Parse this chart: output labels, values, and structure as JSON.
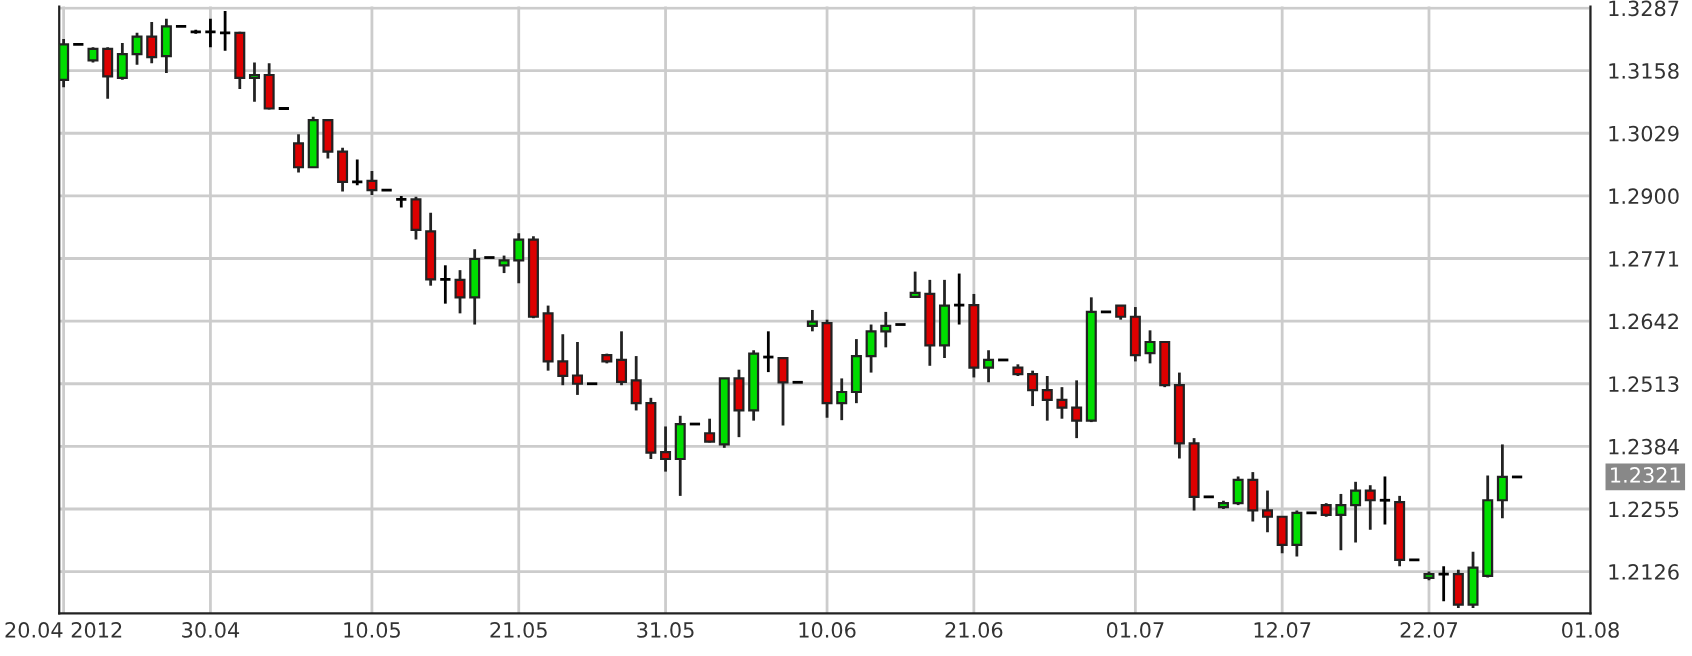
{
  "chart_data": {
    "type": "candlestick",
    "categories": [
      "20.04 2012",
      null,
      null,
      null,
      null,
      null,
      null,
      null,
      null,
      null,
      "30.04",
      null,
      null,
      null,
      null,
      null,
      null,
      null,
      null,
      null,
      null,
      "10.05",
      null,
      null,
      null,
      null,
      null,
      null,
      null,
      null,
      null,
      "21.05",
      null,
      null,
      null,
      null,
      null,
      null,
      null,
      null,
      null,
      "31.05",
      null,
      null,
      null,
      null,
      null,
      null,
      null,
      null,
      null,
      null,
      "10.06",
      null,
      null,
      null,
      null,
      null,
      null,
      null,
      null,
      null,
      "21.06",
      null,
      null,
      null,
      null,
      null,
      null,
      null,
      null,
      null,
      null,
      "01.07",
      null,
      null,
      null,
      null,
      null,
      null,
      null,
      null,
      null,
      "12.07",
      null,
      null,
      null,
      null,
      null,
      null,
      null,
      null,
      null,
      "22.07",
      null,
      null,
      null,
      null,
      null,
      null,
      null,
      null,
      null,
      null,
      "01.08"
    ],
    "ohlc": [
      [
        1.3139,
        1.3223,
        1.3124,
        1.3212
      ],
      [
        1.3212,
        1.3212,
        1.3212,
        1.3212
      ],
      [
        1.3179,
        1.3206,
        1.3175,
        1.3203
      ],
      [
        1.3203,
        1.3206,
        1.31,
        1.3146
      ],
      [
        1.3143,
        1.3215,
        1.3139,
        1.3192
      ],
      [
        1.3192,
        1.3236,
        1.317,
        1.3228
      ],
      [
        1.3228,
        1.3258,
        1.3173,
        1.3186
      ],
      [
        1.3188,
        1.3265,
        1.3153,
        1.3249
      ],
      [
        1.3249,
        1.3249,
        1.3249,
        1.3249
      ],
      [
        1.3238,
        1.3242,
        1.3234,
        1.3238
      ],
      [
        1.3238,
        1.3265,
        1.3206,
        1.3238
      ],
      [
        1.3236,
        1.3281,
        1.3199,
        1.3236
      ],
      [
        1.3236,
        1.3238,
        1.312,
        1.3143
      ],
      [
        1.3143,
        1.3175,
        1.3094,
        1.3149
      ],
      [
        1.3149,
        1.3173,
        1.3078,
        1.308
      ],
      [
        1.308,
        1.308,
        1.308,
        1.308
      ],
      [
        1.3008,
        1.3027,
        1.2948,
        1.2959
      ],
      [
        1.2959,
        1.3063,
        1.2959,
        1.3056
      ],
      [
        1.3056,
        1.3056,
        1.2977,
        1.2991
      ],
      [
        1.2991,
        1.2999,
        1.2909,
        1.2929
      ],
      [
        1.2929,
        1.2975,
        1.2922,
        1.2929
      ],
      [
        1.2931,
        1.2951,
        1.2902,
        1.2912
      ],
      [
        1.2912,
        1.2912,
        1.2912,
        1.2912
      ],
      [
        1.2893,
        1.29,
        1.2876,
        1.2893
      ],
      [
        1.2893,
        1.2898,
        1.281,
        1.283
      ],
      [
        1.2827,
        1.2865,
        1.2715,
        1.2728
      ],
      [
        1.2728,
        1.2757,
        1.2678,
        1.2728
      ],
      [
        1.2727,
        1.2747,
        1.2658,
        1.2691
      ],
      [
        1.2691,
        1.279,
        1.2635,
        1.277
      ],
      [
        1.2773,
        1.2773,
        1.2773,
        1.2773
      ],
      [
        1.2757,
        1.2777,
        1.2741,
        1.2767
      ],
      [
        1.2767,
        1.2823,
        1.272,
        1.281
      ],
      [
        1.281,
        1.2817,
        1.2648,
        1.2651
      ],
      [
        1.2658,
        1.2674,
        1.254,
        1.2559
      ],
      [
        1.2559,
        1.2615,
        1.251,
        1.2529
      ],
      [
        1.253,
        1.2599,
        1.249,
        1.2513
      ],
      [
        1.2513,
        1.2513,
        1.2513,
        1.2513
      ],
      [
        1.2572,
        1.2575,
        1.2555,
        1.2559
      ],
      [
        1.2562,
        1.2621,
        1.251,
        1.2517
      ],
      [
        1.252,
        1.257,
        1.2458,
        1.2473
      ],
      [
        1.2473,
        1.2484,
        1.2358,
        1.2371
      ],
      [
        1.2372,
        1.2425,
        1.2332,
        1.2358
      ],
      [
        1.2358,
        1.2447,
        1.2282,
        1.243
      ],
      [
        1.243,
        1.243,
        1.243,
        1.243
      ],
      [
        1.2411,
        1.2441,
        1.2392,
        1.2394
      ],
      [
        1.2388,
        1.2524,
        1.2381,
        1.2524
      ],
      [
        1.2524,
        1.2542,
        1.2403,
        1.2458
      ],
      [
        1.2458,
        1.2582,
        1.2437,
        1.2575
      ],
      [
        1.2568,
        1.2621,
        1.2537,
        1.2568
      ],
      [
        1.2566,
        1.2566,
        1.2427,
        1.2516
      ],
      [
        1.2516,
        1.2516,
        1.2516,
        1.2516
      ],
      [
        1.2632,
        1.2665,
        1.2621,
        1.2641
      ],
      [
        1.2638,
        1.2645,
        1.2443,
        1.2473
      ],
      [
        1.2473,
        1.2524,
        1.2438,
        1.2496
      ],
      [
        1.2496,
        1.2605,
        1.2473,
        1.257
      ],
      [
        1.257,
        1.2635,
        1.2536,
        1.2621
      ],
      [
        1.2621,
        1.2661,
        1.2588,
        1.2632
      ],
      [
        1.2635,
        1.2635,
        1.2635,
        1.2635
      ],
      [
        1.2692,
        1.2744,
        1.2691,
        1.27
      ],
      [
        1.2698,
        1.2727,
        1.255,
        1.2592
      ],
      [
        1.2592,
        1.2727,
        1.2566,
        1.2674
      ],
      [
        1.2675,
        1.274,
        1.2635,
        1.2675
      ],
      [
        1.2675,
        1.2698,
        1.2526,
        1.2546
      ],
      [
        1.2546,
        1.2582,
        1.2516,
        1.2562
      ],
      [
        1.2562,
        1.2562,
        1.2562,
        1.2562
      ],
      [
        1.2546,
        1.2553,
        1.2529,
        1.2533
      ],
      [
        1.2533,
        1.254,
        1.2467,
        1.25
      ],
      [
        1.25,
        1.2529,
        1.2437,
        1.248
      ],
      [
        1.248,
        1.2506,
        1.2441,
        1.2464
      ],
      [
        1.2464,
        1.252,
        1.2401,
        1.2437
      ],
      [
        1.2437,
        1.2691,
        1.2434,
        1.2661
      ],
      [
        1.2661,
        1.2661,
        1.2661,
        1.2661
      ],
      [
        1.2674,
        1.2674,
        1.2645,
        1.2651
      ],
      [
        1.2651,
        1.2671,
        1.2559,
        1.2572
      ],
      [
        1.2576,
        1.2623,
        1.2555,
        1.2599
      ],
      [
        1.2599,
        1.2599,
        1.2506,
        1.251
      ],
      [
        1.251,
        1.2536,
        1.2359,
        1.239
      ],
      [
        1.239,
        1.2401,
        1.2252,
        1.228
      ],
      [
        1.228,
        1.228,
        1.228,
        1.228
      ],
      [
        1.2259,
        1.2272,
        1.2255,
        1.2267
      ],
      [
        1.2267,
        1.2322,
        1.2263,
        1.2315
      ],
      [
        1.2315,
        1.2331,
        1.2229,
        1.2252
      ],
      [
        1.2252,
        1.2293,
        1.2207,
        1.2239
      ],
      [
        1.2239,
        1.2239,
        1.2164,
        1.2181
      ],
      [
        1.2181,
        1.2252,
        1.2157,
        1.2247
      ],
      [
        1.2247,
        1.2247,
        1.2247,
        1.2247
      ],
      [
        1.2263,
        1.2267,
        1.2239,
        1.2243
      ],
      [
        1.2243,
        1.2286,
        1.217,
        1.2263
      ],
      [
        1.2263,
        1.2311,
        1.2186,
        1.2293
      ],
      [
        1.2293,
        1.2304,
        1.2212,
        1.2273
      ],
      [
        1.2273,
        1.2322,
        1.2223,
        1.2273
      ],
      [
        1.2269,
        1.2282,
        1.2137,
        1.215
      ],
      [
        1.215,
        1.215,
        1.215,
        1.215
      ],
      [
        1.2113,
        1.2126,
        1.2108,
        1.2121
      ],
      [
        1.2121,
        1.2137,
        1.2065,
        1.2121
      ],
      [
        1.2121,
        1.213,
        1.2051,
        1.2058
      ],
      [
        1.2058,
        1.2167,
        1.2051,
        1.2134
      ],
      [
        1.2117,
        1.2324,
        1.2114,
        1.2273
      ],
      [
        1.2273,
        1.2388,
        1.2236,
        1.2321
      ],
      [
        1.2321,
        1.2321,
        1.2321,
        1.2321
      ],
      null,
      null,
      null,
      null,
      null
    ],
    "colors": [
      "#00dd00",
      "#000000",
      "#00dd00",
      "#dd0000",
      "#00dd00",
      "#00dd00",
      "#dd0000",
      "#00dd00",
      "#000000",
      "#000000",
      "#000000",
      "#000000",
      "#dd0000",
      "#00dd00",
      "#dd0000",
      "#000000",
      "#dd0000",
      "#00dd00",
      "#dd0000",
      "#dd0000",
      "#000000",
      "#dd0000",
      "#000000",
      "#000000",
      "#dd0000",
      "#dd0000",
      "#000000",
      "#dd0000",
      "#00dd00",
      "#000000",
      "#00dd00",
      "#00dd00",
      "#dd0000",
      "#dd0000",
      "#dd0000",
      "#dd0000",
      "#000000",
      "#dd0000",
      "#dd0000",
      "#dd0000",
      "#dd0000",
      "#dd0000",
      "#00dd00",
      "#000000",
      "#dd0000",
      "#00dd00",
      "#dd0000",
      "#00dd00",
      "#000000",
      "#dd0000",
      "#000000",
      "#00dd00",
      "#dd0000",
      "#00dd00",
      "#00dd00",
      "#00dd00",
      "#00dd00",
      "#000000",
      "#00dd00",
      "#dd0000",
      "#00dd00",
      "#000000",
      "#dd0000",
      "#00dd00",
      "#000000",
      "#dd0000",
      "#dd0000",
      "#dd0000",
      "#dd0000",
      "#dd0000",
      "#00dd00",
      "#000000",
      "#dd0000",
      "#dd0000",
      "#00dd00",
      "#dd0000",
      "#dd0000",
      "#dd0000",
      "#000000",
      "#00dd00",
      "#00dd00",
      "#dd0000",
      "#dd0000",
      "#dd0000",
      "#00dd00",
      "#000000",
      "#dd0000",
      "#00dd00",
      "#00dd00",
      "#dd0000",
      "#000000",
      "#dd0000",
      "#000000",
      "#00dd00",
      "#000000",
      "#dd0000",
      "#00dd00",
      "#00dd00",
      "#00dd00",
      "#000000",
      null,
      null,
      null,
      null,
      null
    ],
    "ylim": [
      1.204,
      1.329
    ],
    "yticks": [
      1.2126,
      1.2255,
      1.2384,
      1.2513,
      1.2642,
      1.2771,
      {
        "value": 1.29,
        "label": "1.2900"
      },
      1.3029,
      1.3158,
      1.3287
    ],
    "grid": true,
    "annotations": [
      "1.2321"
    ]
  }
}
